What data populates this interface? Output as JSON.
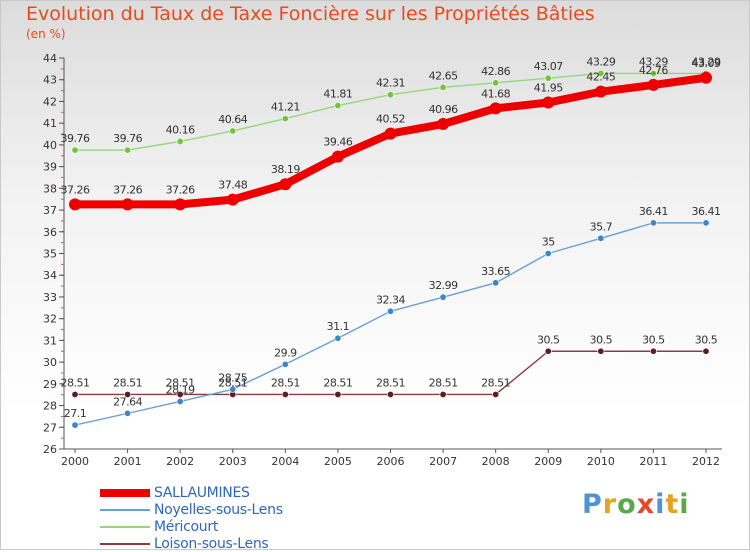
{
  "title": "Evolution du Taux de Taxe Foncière sur les Propriétés Bâties",
  "unit_label": "(en %)",
  "logo": {
    "letters": [
      "P",
      "r",
      "o",
      "x",
      "i",
      "t",
      "i"
    ],
    "colors": [
      "#4f93d4",
      "#e8a21b",
      "#5aa84a",
      "#e04b2a",
      "#4f93d4",
      "#e8a21b",
      "#5aa84a"
    ]
  },
  "chart_data": {
    "type": "line",
    "x": [
      "2000",
      "2001",
      "2002",
      "2003",
      "2004",
      "2005",
      "2006",
      "2007",
      "2008",
      "2009",
      "2010",
      "2011",
      "2012"
    ],
    "ylim": [
      26,
      44
    ],
    "yticks": [
      26,
      27,
      28,
      29,
      30,
      31,
      32,
      33,
      34,
      35,
      36,
      37,
      38,
      39,
      40,
      41,
      42,
      43,
      44
    ],
    "grid": false,
    "legend_position": "bottom-left",
    "series": [
      {
        "name": "SALLAUMINES",
        "color": "#ee0000",
        "labels": [
          "37.26",
          "37.26",
          "37.26",
          "37.48",
          "38.19",
          "39.46",
          "40.52",
          "40.96",
          "41.68",
          "41.95",
          "42.45",
          "42.76",
          "43.09"
        ],
        "values": [
          37.26,
          37.26,
          37.26,
          37.48,
          38.19,
          39.46,
          40.52,
          40.96,
          41.68,
          41.95,
          42.45,
          42.76,
          43.09
        ]
      },
      {
        "name": "Noyelles-sous-Lens",
        "color": "#6a9fd4",
        "marker": "#3d86c8",
        "labels": [
          "27.1",
          "27.64",
          "28.19",
          "28.75",
          "29.9",
          "31.1",
          "32.34",
          "32.99",
          "33.65",
          "35",
          "35.7",
          "36.41",
          "36.41"
        ],
        "values": [
          27.1,
          27.64,
          28.19,
          28.75,
          29.9,
          31.1,
          32.34,
          32.99,
          33.65,
          35,
          35.7,
          36.41,
          36.41
        ]
      },
      {
        "name": "Méricourt",
        "color": "#92d87a",
        "marker": "#73c43a",
        "labels": [
          "39.76",
          "39.76",
          "40.16",
          "40.64",
          "41.21",
          "41.81",
          "42.31",
          "42.65",
          "42.86",
          "43.07",
          "43.29",
          "43.29",
          "43.29"
        ],
        "values": [
          39.76,
          39.76,
          40.16,
          40.64,
          41.21,
          41.81,
          42.31,
          42.65,
          42.86,
          43.07,
          43.29,
          43.29,
          43.29
        ]
      },
      {
        "name": "Loison-sous-Lens",
        "color": "#8a3c3c",
        "marker": "#5a1f1f",
        "labels": [
          "28.51",
          "28.51",
          "28.51",
          "28.51",
          "28.51",
          "28.51",
          "28.51",
          "28.51",
          "28.51",
          "30.5",
          "30.5",
          "30.5",
          "30.5"
        ],
        "values": [
          28.51,
          28.51,
          28.51,
          28.51,
          28.51,
          28.51,
          28.51,
          28.51,
          28.51,
          30.5,
          30.5,
          30.5,
          30.5
        ]
      }
    ]
  }
}
